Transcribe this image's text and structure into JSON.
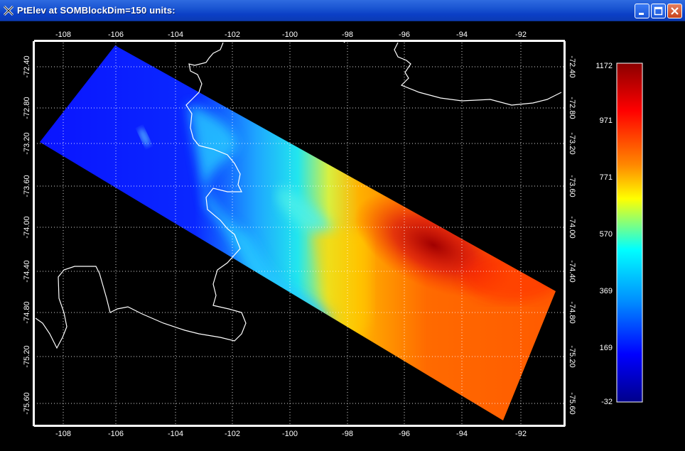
{
  "window": {
    "title": "PtElev at SOMBlockDim=150  units:"
  },
  "plot": {
    "lon_ticks": [
      "-108",
      "-106",
      "-104",
      "-102",
      "-100",
      "-98",
      "-96",
      "-94",
      "-92"
    ],
    "lat_ticks": [
      "-72.40",
      "-72.80",
      "-73.20",
      "-73.60",
      "-74.00",
      "-74.40",
      "-74.80",
      "-75.20",
      "-75.60"
    ]
  },
  "colorbar": {
    "labels": [
      "1172",
      "971",
      "771",
      "570",
      "369",
      "169",
      "-32"
    ],
    "colors": [
      "#8b0000",
      "#ff0000",
      "#ff8800",
      "#ffff00",
      "#00ffff",
      "#0080ff",
      "#0000ff",
      "#00008b"
    ]
  }
}
